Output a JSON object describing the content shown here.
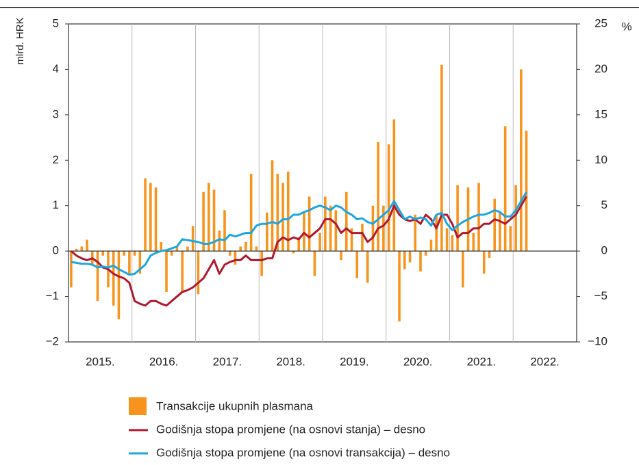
{
  "chart_data": {
    "type": "bar",
    "y_label": "mlrd. HRK",
    "y2_label": "%",
    "categories": [
      "2015.",
      null,
      null,
      null,
      null,
      null,
      null,
      null,
      null,
      null,
      null,
      null,
      "2016.",
      null,
      null,
      null,
      null,
      null,
      null,
      null,
      null,
      null,
      null,
      null,
      "2017.",
      null,
      null,
      null,
      null,
      null,
      null,
      null,
      null,
      null,
      null,
      null,
      "2018.",
      null,
      null,
      null,
      null,
      null,
      null,
      null,
      null,
      null,
      null,
      null,
      "2019.",
      null,
      null,
      null,
      null,
      null,
      null,
      null,
      null,
      null,
      null,
      null,
      "2020.",
      null,
      null,
      null,
      null,
      null,
      null,
      null,
      null,
      null,
      null,
      null,
      "2021.",
      null,
      null,
      null,
      null,
      null,
      null,
      null,
      null,
      null,
      null,
      null,
      "2022.",
      null,
      null,
      null,
      null,
      null,
      null,
      null,
      null,
      null,
      null,
      null
    ],
    "ylim": [
      -2,
      5
    ],
    "yticks": [
      {
        "value": -2,
        "label": "−2"
      },
      {
        "value": -1,
        "label": "−1"
      },
      0,
      1,
      2,
      3,
      4,
      5
    ],
    "y2lim": [
      -10,
      25
    ],
    "y2ticks": [
      {
        "value": -10,
        "label": "−10"
      },
      {
        "value": -5,
        "label": "−5"
      },
      0,
      5,
      10,
      15,
      20,
      25
    ],
    "series": [
      {
        "name": "Transakcije ukupnih plasmana",
        "type": "bar",
        "axis": "y",
        "color": "#f7941d",
        "values": [
          -0.8,
          0.05,
          0.1,
          0.25,
          -0.3,
          -1.1,
          -0.1,
          -0.8,
          -1.2,
          -1.5,
          -0.1,
          -0.5,
          -0.1,
          -0.5,
          1.6,
          1.5,
          1.4,
          0.2,
          -0.9,
          -0.1,
          0.1,
          -0.9,
          0.1,
          0.55,
          -0.95,
          1.3,
          1.5,
          1.35,
          0.45,
          0.9,
          -0.1,
          -0.3,
          0.1,
          0.2,
          1.7,
          0.1,
          -0.55,
          0.85,
          2.0,
          1.7,
          1.5,
          1.75,
          -0.05,
          0.3,
          0.85,
          1.2,
          -0.55,
          0.4,
          1.2,
          1.0,
          0.9,
          -0.2,
          1.3,
          0.5,
          -0.6,
          0.6,
          -0.7,
          1.0,
          2.4,
          1.0,
          2.35,
          2.9,
          -1.55,
          -0.4,
          -0.25,
          0.8,
          -0.45,
          -0.1,
          0.25,
          0.8,
          4.1,
          0.5,
          0.35,
          1.45,
          -0.8,
          1.4,
          0.4,
          1.5,
          -0.5,
          -0.15,
          1.15,
          0.85,
          2.75,
          0.55,
          1.45,
          4.0,
          2.65,
          null,
          null,
          null,
          null,
          null,
          null,
          null,
          null,
          null
        ]
      },
      {
        "name": "Godišnja stopa promjene (na osnovi stanja) – desno",
        "type": "line",
        "axis": "y2",
        "color": "#b0182e",
        "values": [
          0,
          -0.5,
          -0.8,
          -1.0,
          -0.8,
          -1.2,
          -1.8,
          -2.0,
          -2.5,
          -2.8,
          -3.0,
          -3.5,
          -5.5,
          -5.8,
          -6.0,
          -5.5,
          -5.5,
          -5.8,
          -6.0,
          -5.5,
          -5.0,
          -4.5,
          -4.3,
          -4.0,
          -3.5,
          -3.0,
          -2.0,
          -1.0,
          -2.5,
          -1.5,
          -1.2,
          -1.0,
          -1.0,
          -0.5,
          -1.0,
          -1.0,
          -1.0,
          -0.8,
          -0.8,
          1.0,
          1.5,
          1.2,
          1.5,
          1.3,
          2.0,
          1.5,
          2.0,
          2.5,
          3.5,
          3.5,
          3.0,
          2.0,
          2.5,
          2.0,
          2.0,
          2.0,
          1.0,
          1.5,
          2.5,
          2.8,
          3.5,
          5.0,
          4.0,
          3.5,
          3.3,
          3.5,
          3.0,
          4.0,
          3.5,
          2.5,
          4.0,
          4.0,
          3.0,
          1.5,
          2.0,
          2.0,
          2.5,
          2.5,
          3.0,
          3.0,
          3.5,
          3.3,
          3.0,
          3.5,
          4.0,
          5.0,
          6.0,
          null,
          null,
          null,
          null,
          null,
          null,
          null,
          null,
          null
        ]
      },
      {
        "name": "Godišnja stopa promjene (na osnovi transakcija) – desno",
        "type": "line",
        "axis": "y2",
        "color": "#1aa7e0",
        "values": [
          -1.2,
          -1.3,
          -1.4,
          -1.4,
          -1.5,
          -1.8,
          -1.7,
          -1.8,
          -1.6,
          -2.0,
          -2.3,
          -2.6,
          -2.5,
          -2.0,
          -1.5,
          -0.5,
          -0.2,
          0,
          0.1,
          0.3,
          0.5,
          1.3,
          1.2,
          1.1,
          1.0,
          0.8,
          0.8,
          1.0,
          1.3,
          1.2,
          1.8,
          1.6,
          1.8,
          2.0,
          2.0,
          2.8,
          3.0,
          3.0,
          3.2,
          3.0,
          3.5,
          3.5,
          4.0,
          4.0,
          4.3,
          4.5,
          4.8,
          5.0,
          4.8,
          4.5,
          5.0,
          4.8,
          4.3,
          4.0,
          3.5,
          3.6,
          3.2,
          3.0,
          3.5,
          4.0,
          4.5,
          5.5,
          4.5,
          3.5,
          3.8,
          3.5,
          3.7,
          3.5,
          2.8,
          4.0,
          4.2,
          3.0,
          2.3,
          2.8,
          3.2,
          3.5,
          3.8,
          4.0,
          4.0,
          4.2,
          4.5,
          4.3,
          3.8,
          3.8,
          4.5,
          5.5,
          6.5,
          null,
          null,
          null,
          null,
          null,
          null,
          null,
          null,
          null
        ]
      }
    ]
  }
}
